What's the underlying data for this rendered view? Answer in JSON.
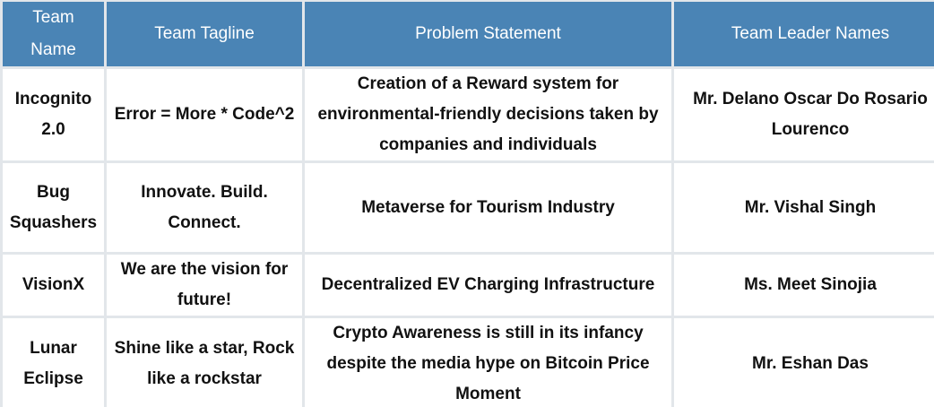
{
  "table": {
    "headers": [
      "Team Name",
      "Team Tagline",
      "Problem Statement",
      "Team Leader Names"
    ],
    "rows": [
      {
        "team_name": "Incognito 2.0",
        "tagline": "Error = More * Code^2",
        "problem": "Creation of a Reward system for environmental-friendly decisions taken by companies and individuals",
        "leader": "Mr. Delano Oscar Do Rosario Lourenco"
      },
      {
        "team_name": "Bug Squashers",
        "tagline": "Innovate. Build. Connect.",
        "problem": "Metaverse for Tourism Industry",
        "leader": "Mr. Vishal Singh"
      },
      {
        "team_name": "VisionX",
        "tagline": "We are the vision for future!",
        "problem": "Decentralized EV Charging Infrastructure",
        "leader": "Ms. Meet Sinojia"
      },
      {
        "team_name": "Lunar Eclipse",
        "tagline": "Shine like a star, Rock\nlike a rockstar",
        "problem": "Crypto Awareness is still in its infancy despite the media hype on Bitcoin Price Moment",
        "leader": "Mr. Eshan Das"
      }
    ]
  }
}
